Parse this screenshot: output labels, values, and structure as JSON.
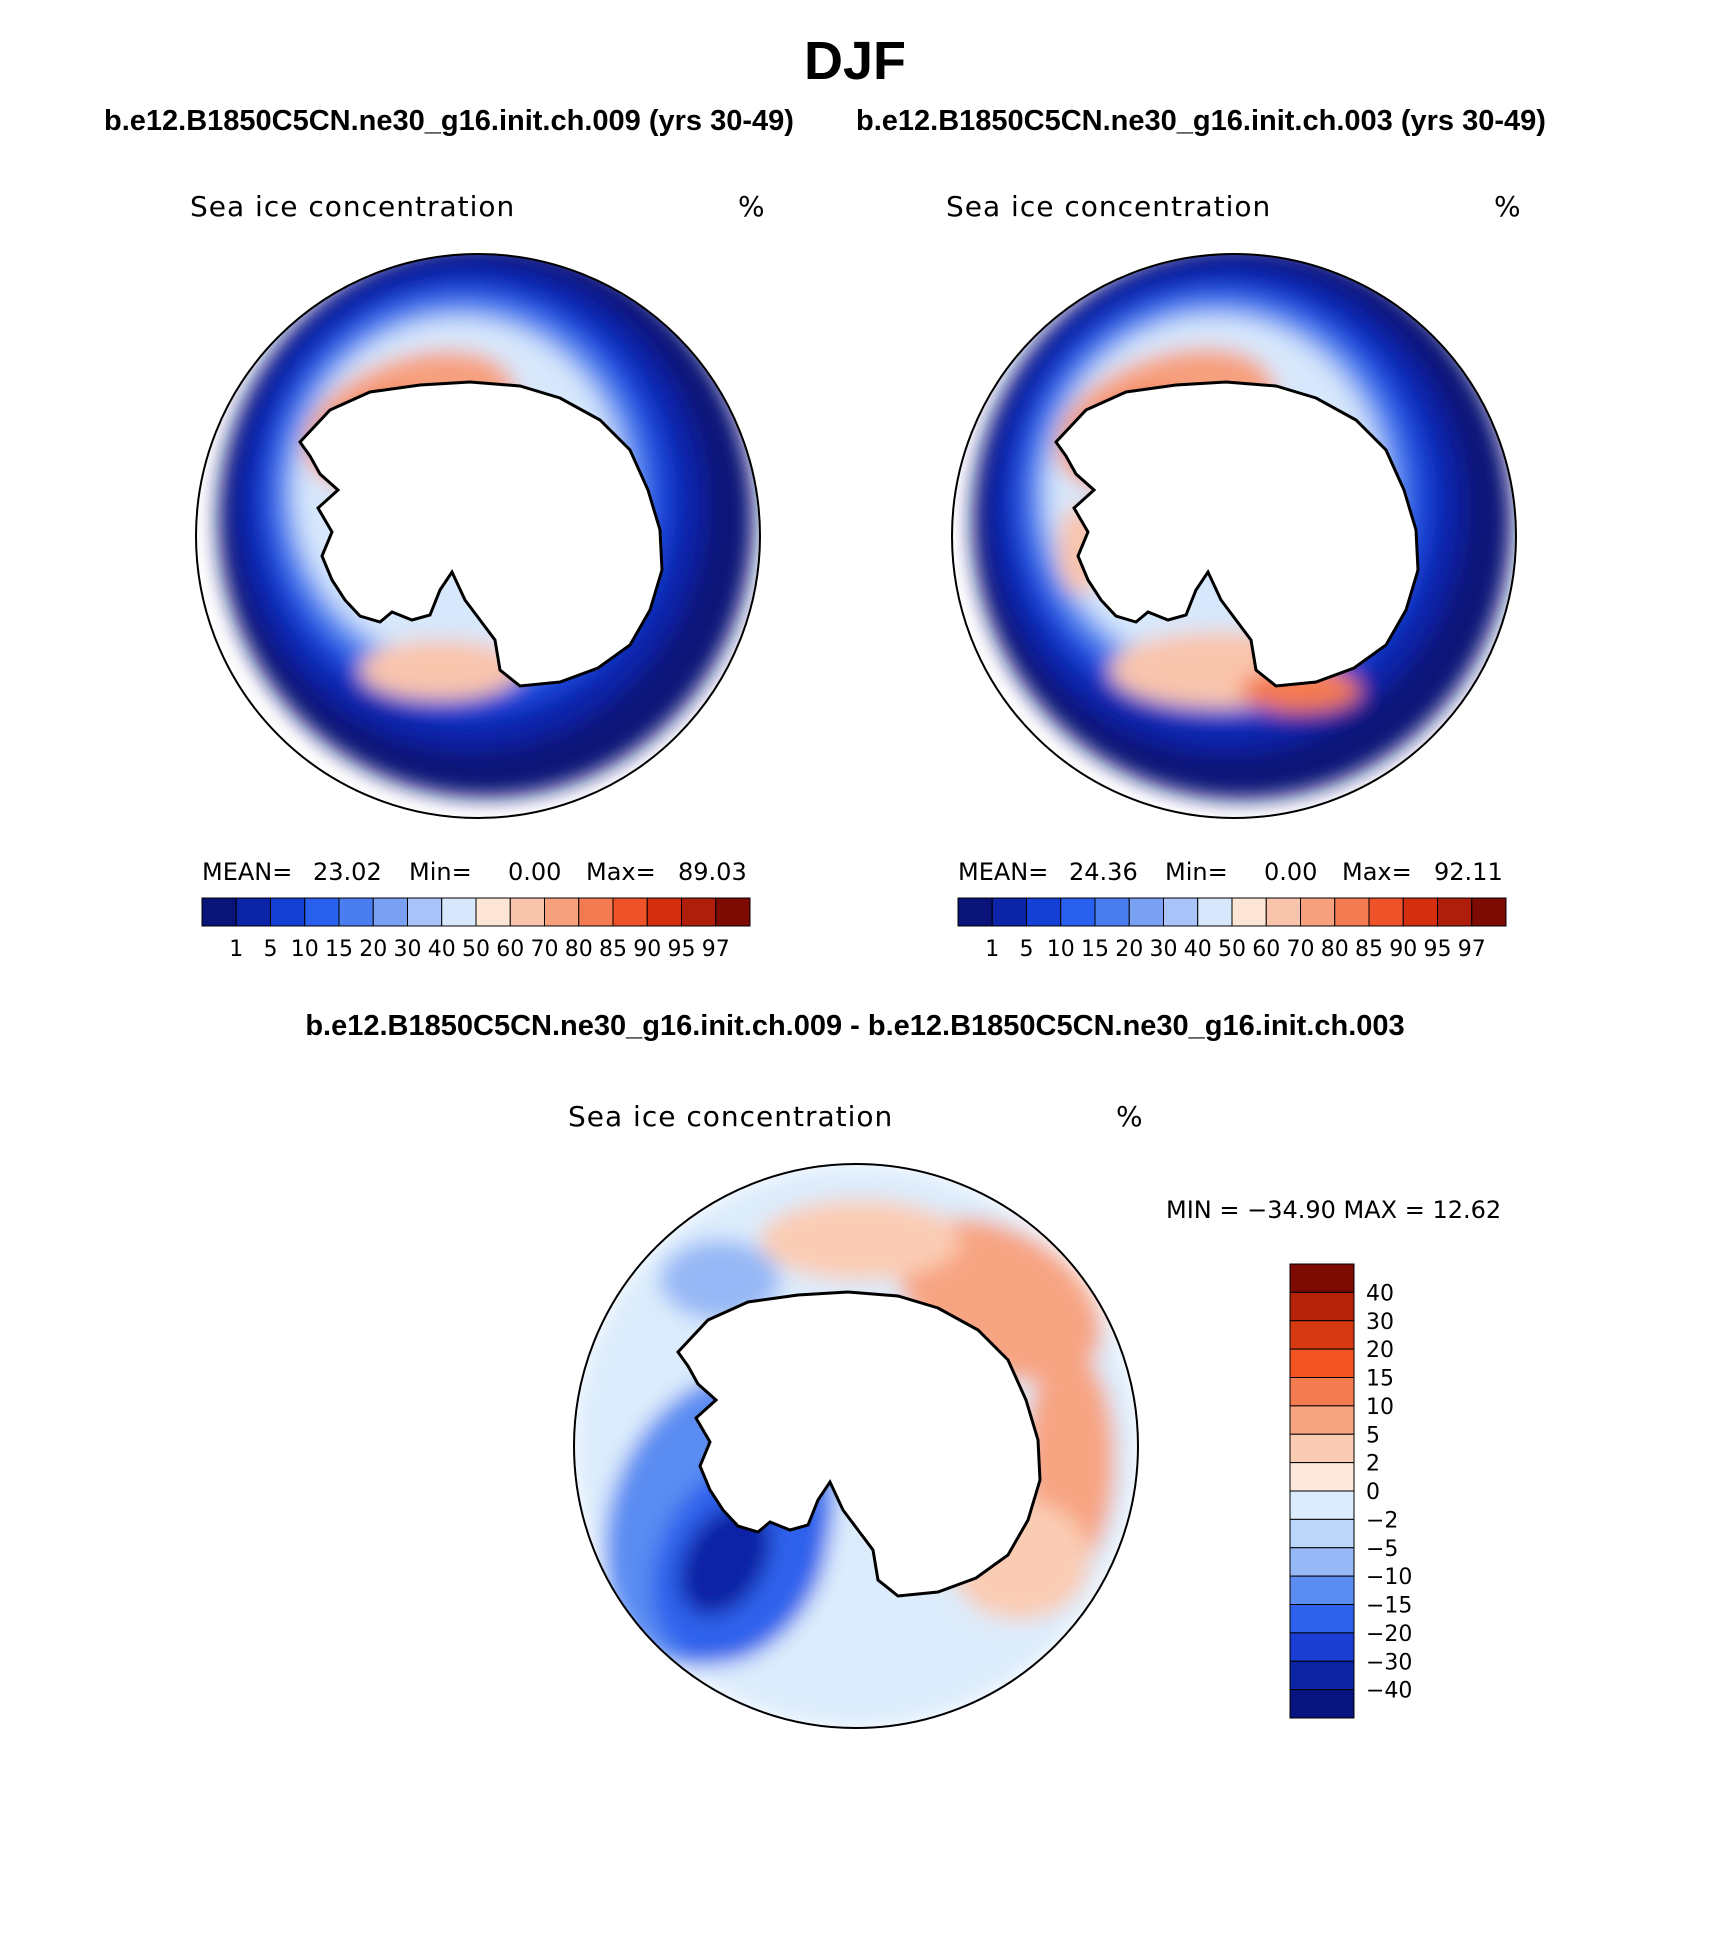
{
  "figure": {
    "title": "DJF",
    "left_run_title": "b.e12.B1850C5CN.ne30_g16.init.ch.009 (yrs 30-49)",
    "right_run_title": "b.e12.B1850C5CN.ne30_g16.init.ch.003 (yrs 30-49)",
    "diff_title": "b.e12.B1850C5CN.ne30_g16.init.ch.009 - b.e12.B1850C5CN.ne30_g16.init.ch.003"
  },
  "panels": {
    "left": {
      "variable": "Sea ice concentration",
      "units": "%",
      "mean_label": "MEAN=",
      "mean": "23.02",
      "min_label": "Min=",
      "min": "0.00",
      "max_label": "Max=",
      "max": "89.03"
    },
    "right": {
      "variable": "Sea ice concentration",
      "units": "%",
      "mean_label": "MEAN=",
      "mean": "24.36",
      "min_label": "Min=",
      "min": "0.00",
      "max_label": "Max=",
      "max": "92.11"
    },
    "diff": {
      "variable": "Sea ice concentration",
      "units": "%",
      "minmax": "MIN = −34.90 MAX =   12.62"
    }
  },
  "colorbars": {
    "abs_levels": [
      "1",
      "5",
      "10",
      "15",
      "20",
      "30",
      "40",
      "50",
      "60",
      "70",
      "80",
      "85",
      "90",
      "95",
      "97"
    ],
    "abs_colors": [
      "#0a1478",
      "#0c24a8",
      "#1440d6",
      "#2a60ee",
      "#4a7df0",
      "#7aa0f4",
      "#a8c4f8",
      "#d8e8fc",
      "#fde6d6",
      "#f9c4ac",
      "#f7a07e",
      "#f47a50",
      "#ee5228",
      "#d43010",
      "#ae1e0a",
      "#7e0a04"
    ],
    "diff_levels": [
      "40",
      "30",
      "20",
      "15",
      "10",
      "5",
      "2",
      "0",
      "−2",
      "−5",
      "−10",
      "−15",
      "−20",
      "−30",
      "−40"
    ],
    "diff_colors": [
      "#7e0a04",
      "#b4220a",
      "#d63812",
      "#f25424",
      "#f47c50",
      "#f7a482",
      "#fbccb4",
      "#fde9dc",
      "#dcecfc",
      "#bcd6fa",
      "#96b8f6",
      "#5a8cf2",
      "#2e62ec",
      "#1a3ed2",
      "#0c24a4",
      "#08147e"
    ]
  }
}
